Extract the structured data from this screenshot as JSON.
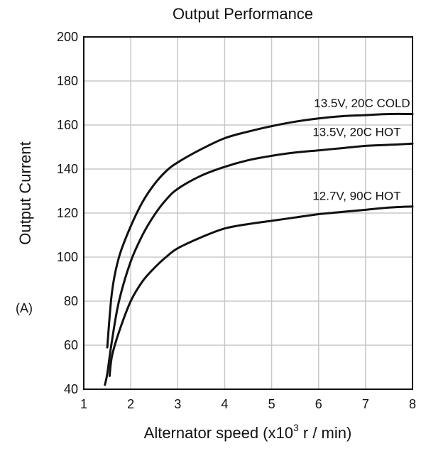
{
  "chart_data": {
    "type": "line",
    "title": "Output Performance",
    "xlabel": "Alternator speed (x10",
    "xlabel_sup": "3",
    "xlabel_suffix": " r / min)",
    "ylabel": "Output Current",
    "side_label": "(A)",
    "xlim": [
      1,
      8
    ],
    "ylim": [
      40,
      200
    ],
    "xticks": [
      1,
      2,
      3,
      4,
      5,
      6,
      7,
      8
    ],
    "yticks": [
      40,
      60,
      80,
      100,
      120,
      140,
      160,
      180,
      200
    ],
    "grid": true,
    "series": [
      {
        "name": "13.5V, 20C COLD",
        "x": [
          1.5,
          1.6,
          1.75,
          2.0,
          2.25,
          2.5,
          2.75,
          3.0,
          3.5,
          4.0,
          4.5,
          5.0,
          5.5,
          6.0,
          6.5,
          7.0,
          7.5,
          8.0
        ],
        "y": [
          59,
          84,
          100,
          114,
          125,
          133,
          139,
          143,
          149,
          154,
          157,
          159.5,
          161.5,
          163,
          164,
          164.5,
          165,
          165
        ]
      },
      {
        "name": "13.5V, 20C HOT",
        "x": [
          1.45,
          1.5,
          1.6,
          1.75,
          2.0,
          2.25,
          2.5,
          2.75,
          3.0,
          3.5,
          4.0,
          4.5,
          5.0,
          5.5,
          6.0,
          6.5,
          7.0,
          7.5,
          8.0
        ],
        "y": [
          42,
          47,
          62,
          80,
          98,
          110,
          119,
          126,
          131,
          137,
          141,
          144,
          146,
          147.5,
          148.5,
          149.5,
          150.5,
          151,
          151.5
        ]
      },
      {
        "name": "12.7V, 90C HOT",
        "x": [
          1.55,
          1.6,
          1.75,
          2.0,
          2.25,
          2.5,
          2.75,
          3.0,
          3.5,
          4.0,
          4.5,
          5.0,
          5.5,
          6.0,
          6.5,
          7.0,
          7.5,
          8.0
        ],
        "y": [
          46,
          55,
          66,
          80,
          89,
          95,
          100,
          104,
          109,
          113,
          115,
          116.5,
          118,
          119.5,
          120.5,
          121.5,
          122.5,
          123
        ]
      }
    ],
    "series_labels": [
      {
        "text": "13.5V, 20C COLD",
        "x": 7.95,
        "y": 168
      },
      {
        "text": "13.5V, 20C HOT",
        "x": 7.75,
        "y": 155
      },
      {
        "text": "12.7V, 90C HOT",
        "x": 7.75,
        "y": 126
      }
    ]
  }
}
